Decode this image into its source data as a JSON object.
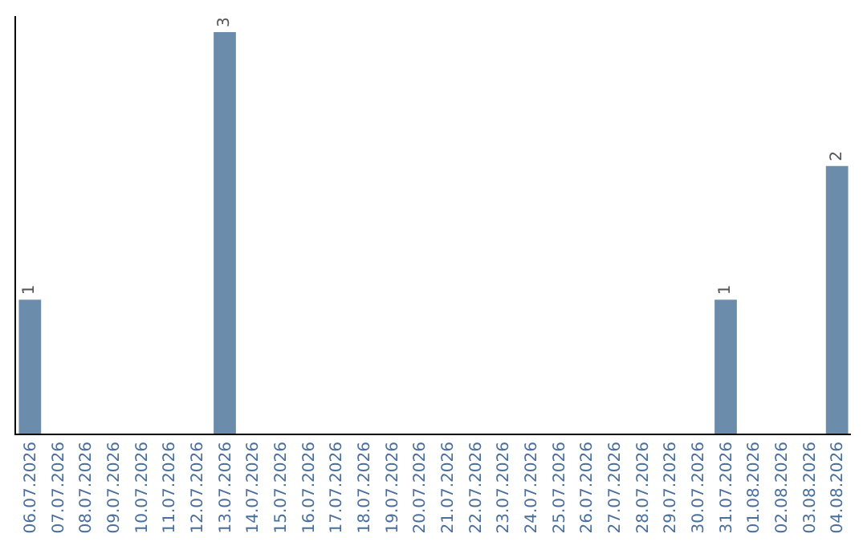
{
  "chart_data": {
    "type": "bar",
    "categories": [
      "06.07.2026",
      "07.07.2026",
      "08.07.2026",
      "09.07.2026",
      "10.07.2026",
      "11.07.2026",
      "12.07.2026",
      "13.07.2026",
      "14.07.2026",
      "15.07.2026",
      "16.07.2026",
      "17.07.2026",
      "18.07.2026",
      "19.07.2026",
      "20.07.2026",
      "21.07.2026",
      "22.07.2026",
      "23.07.2026",
      "24.07.2026",
      "25.07.2026",
      "26.07.2026",
      "27.07.2026",
      "28.07.2026",
      "29.07.2026",
      "30.07.2026",
      "31.07.2026",
      "01.08.2026",
      "02.08.2026",
      "03.08.2026",
      "04.08.2026"
    ],
    "values": [
      1,
      0,
      0,
      0,
      0,
      0,
      0,
      3,
      0,
      0,
      0,
      0,
      0,
      0,
      0,
      0,
      0,
      0,
      0,
      0,
      0,
      0,
      0,
      0,
      0,
      1,
      0,
      0,
      0,
      2
    ],
    "color": "#6b8cab",
    "value_labels": [
      "1",
      null,
      null,
      null,
      null,
      null,
      null,
      "3",
      null,
      null,
      null,
      null,
      null,
      null,
      null,
      null,
      null,
      null,
      null,
      null,
      null,
      null,
      null,
      null,
      null,
      "1",
      null,
      null,
      null,
      "2"
    ],
    "tick_labels": "x",
    "grid": false,
    "legend": false
  }
}
